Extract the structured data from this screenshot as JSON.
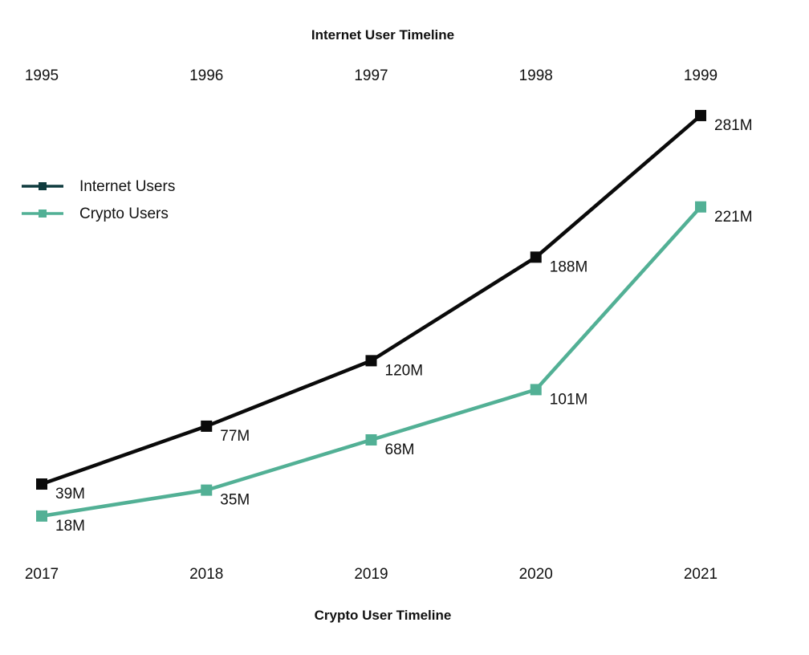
{
  "chart_data": {
    "type": "line",
    "title": "Internet User Timeline",
    "xlabel": "Crypto User Timeline",
    "top_axis_label": "Internet User Timeline",
    "top_categories": [
      "1995",
      "1996",
      "1997",
      "1998",
      "1999"
    ],
    "bottom_categories": [
      "2017",
      "2018",
      "2019",
      "2020",
      "2021"
    ],
    "legend_position": "left",
    "grid": false,
    "series": [
      {
        "name": "Internet Users",
        "color": "#0a0a0a",
        "legend_color": "#0f3b3e",
        "axis": "top",
        "values": [
          39,
          77,
          120,
          188,
          281
        ],
        "labels": [
          "39M",
          "77M",
          "120M",
          "188M",
          "281M"
        ]
      },
      {
        "name": "Crypto Users",
        "color": "#52b095",
        "legend_color": "#52b095",
        "axis": "bottom",
        "values": [
          18,
          35,
          68,
          101,
          221
        ],
        "labels": [
          "18M",
          "35M",
          "68M",
          "101M",
          "221M"
        ]
      }
    ]
  }
}
